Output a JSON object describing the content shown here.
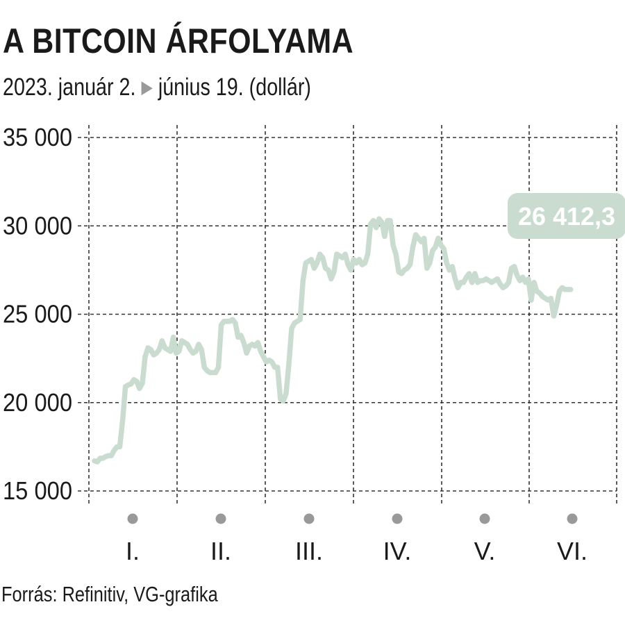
{
  "header": {
    "title": "A BITCOIN ÁRFOLYAMA",
    "subtitle_start": "2023. január 2.",
    "subtitle_arrow": "▶",
    "subtitle_end": "június 19. (dollár)"
  },
  "footer": {
    "source": "Forrás: Refinitiv, VG-grafika"
  },
  "chart_data": {
    "type": "line",
    "title": "A BITCOIN ÁRFOLYAMA",
    "subtitle": "2023. január 2. ▶ június 19. (dollár)",
    "xlabel": "",
    "ylabel": "",
    "ylim": [
      15000,
      35000
    ],
    "y_ticks": [
      15000,
      20000,
      25000,
      30000,
      35000
    ],
    "y_tick_labels": [
      "15 000",
      "20 000",
      "25 000",
      "30 000",
      "35 000"
    ],
    "x_categories": [
      "I.",
      "II.",
      "III.",
      "IV.",
      "V.",
      "VI."
    ],
    "x_range_days": [
      1,
      175
    ],
    "grid": true,
    "line_color": "#c9dccf",
    "end_label": "26 412,3",
    "end_label_color": "#c9dccf",
    "series": [
      {
        "x": [
          1,
          2,
          3,
          4,
          5,
          6,
          7,
          8,
          9,
          10,
          11,
          12,
          13,
          14,
          15,
          16,
          17,
          18,
          19,
          20,
          21,
          22,
          23,
          24,
          25,
          26,
          27,
          28,
          29,
          30,
          31,
          32,
          33,
          34,
          35,
          36,
          37,
          38,
          39,
          40,
          41,
          42,
          43,
          44,
          45,
          46,
          47,
          48,
          49,
          50,
          51,
          52,
          53,
          54,
          55,
          56,
          57,
          58,
          59,
          60,
          61,
          62,
          63,
          64,
          65,
          66,
          67,
          68,
          69,
          70,
          71,
          72,
          73,
          74,
          75,
          76,
          77,
          78,
          79,
          80,
          81,
          82,
          83,
          84,
          85,
          86,
          87,
          88,
          89,
          90,
          91,
          92,
          93,
          94,
          95,
          96,
          97,
          98,
          99,
          100,
          101,
          102,
          103,
          104,
          105,
          106,
          107,
          108,
          109,
          110,
          111,
          112,
          113,
          114,
          115,
          116,
          117,
          118,
          119,
          120,
          121,
          122,
          123,
          124,
          125,
          126,
          127,
          128,
          129,
          130,
          131,
          132,
          133,
          134,
          135,
          136,
          137,
          138,
          139,
          140,
          141,
          142,
          143,
          144,
          145,
          146,
          147,
          148,
          149,
          150,
          151,
          152,
          153,
          154,
          155,
          156,
          157,
          158,
          159,
          160,
          161,
          162,
          163,
          164,
          165,
          166,
          167,
          168,
          169,
          170
        ],
        "values": [
          16700,
          16650,
          16850,
          16850,
          16950,
          17000,
          17000,
          17300,
          17500,
          17500,
          19000,
          20900,
          21000,
          21050,
          21300,
          21200,
          20800,
          21100,
          22600,
          23100,
          23000,
          22700,
          22800,
          23000,
          23500,
          23100,
          23000,
          22900,
          23700,
          22800,
          22900,
          23500,
          23400,
          23300,
          23000,
          22800,
          22900,
          23300,
          23000,
          22000,
          21800,
          21700,
          21700,
          21700,
          22000,
          24400,
          24600,
          24600,
          24600,
          24700,
          24500,
          23700,
          23800,
          23400,
          22800,
          23200,
          23300,
          23200,
          23400,
          22900,
          22600,
          22300,
          22400,
          22300,
          22000,
          22000,
          20200,
          20100,
          20500,
          22200,
          24200,
          24500,
          24600,
          24700,
          26900,
          27900,
          28000,
          28100,
          27600,
          27900,
          28400,
          28200,
          27600,
          27500,
          27000,
          27400,
          28400,
          28300,
          28200,
          28400,
          27800,
          27500,
          28100,
          27900,
          28100,
          27800,
          27900,
          28400,
          30100,
          30300,
          29900,
          30400,
          30200,
          29400,
          30300,
          30300,
          28900,
          28400,
          27400,
          27300,
          27500,
          27600,
          27800,
          28800,
          29500,
          29300,
          29100,
          29300,
          27600,
          27900,
          28600,
          28800,
          29300,
          28900,
          28700,
          27900,
          27500,
          27700,
          27000,
          26500,
          26800,
          26800,
          27100,
          27300,
          26800,
          27300,
          26800,
          26900,
          26900,
          27000,
          26900,
          26800,
          26900,
          27000,
          26700,
          26500,
          26600,
          26800,
          27600,
          27700,
          27200,
          26900,
          27100,
          26800,
          27000,
          25800,
          26800,
          26300,
          26200,
          26000,
          25900,
          25800,
          25900,
          24900,
          25500,
          26300,
          26500,
          26400,
          26400,
          26400
        ]
      }
    ]
  }
}
